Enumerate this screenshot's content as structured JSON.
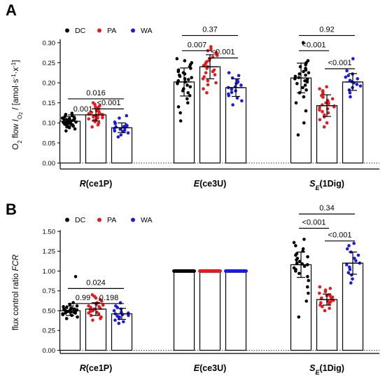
{
  "panels": [
    {
      "letter": "A",
      "legend": [
        {
          "label": "DC",
          "color": "#000000"
        },
        {
          "label": "PA",
          "color": "#e8191d"
        },
        {
          "label": "WA",
          "color": "#1a1ae6"
        }
      ],
      "ylabel_parts": [
        "O",
        "2",
        " flow ",
        "I",
        "O",
        "2",
        " / [amol·s",
        "-1",
        "·x",
        "-1",
        "]"
      ],
      "yticks": [
        "0.00",
        "0.05",
        "0.10",
        "0.15",
        "0.20",
        "0.25",
        "0.30"
      ],
      "chart_data": {
        "type": "bar",
        "ylim": [
          -0.015,
          0.305
        ],
        "yticks": [
          0,
          0.05,
          0.1,
          0.15,
          0.2,
          0.25,
          0.3
        ],
        "reference_line": 0,
        "categories": [
          {
            "name": "R",
            "sub": "",
            "suffix": "(ce1P)"
          },
          {
            "name": "E",
            "sub": "",
            "suffix": "(ce3U)"
          },
          {
            "name": "S",
            "sub": "E",
            "suffix": "(1Dig)"
          }
        ],
        "groups": [
          {
            "category": 0,
            "series": "DC",
            "color": "#000000",
            "mean": 0.104,
            "sd": 0.012,
            "points": [
              0.08,
              0.085,
              0.088,
              0.09,
              0.092,
              0.094,
              0.095,
              0.096,
              0.097,
              0.098,
              0.099,
              0.1,
              0.1,
              0.101,
              0.102,
              0.103,
              0.104,
              0.105,
              0.106,
              0.107,
              0.108,
              0.109,
              0.11,
              0.111,
              0.112,
              0.114,
              0.116,
              0.118,
              0.121,
              0.124
            ]
          },
          {
            "category": 0,
            "series": "PA",
            "color": "#e8191d",
            "mean": 0.12,
            "sd": 0.015,
            "points": [
              0.09,
              0.095,
              0.1,
              0.103,
              0.106,
              0.108,
              0.11,
              0.112,
              0.113,
              0.115,
              0.116,
              0.117,
              0.118,
              0.119,
              0.12,
              0.121,
              0.122,
              0.123,
              0.125,
              0.126,
              0.128,
              0.13,
              0.132,
              0.135,
              0.138,
              0.14,
              0.143,
              0.146,
              0.15
            ]
          },
          {
            "category": 0,
            "series": "WA",
            "color": "#1a1ae6",
            "mean": 0.088,
            "sd": 0.012,
            "points": [
              0.065,
              0.07,
              0.075,
              0.078,
              0.08,
              0.082,
              0.084,
              0.086,
              0.088,
              0.09,
              0.091,
              0.093,
              0.095,
              0.098,
              0.102,
              0.112,
              0.118
            ]
          },
          {
            "category": 1,
            "series": "DC",
            "color": "#000000",
            "mean": 0.202,
            "sd": 0.035,
            "points": [
              0.105,
              0.125,
              0.14,
              0.15,
              0.16,
              0.168,
              0.175,
              0.18,
              0.185,
              0.19,
              0.194,
              0.198,
              0.2,
              0.202,
              0.205,
              0.208,
              0.21,
              0.213,
              0.216,
              0.219,
              0.222,
              0.225,
              0.228,
              0.232,
              0.236,
              0.24,
              0.245,
              0.25,
              0.255,
              0.26
            ]
          },
          {
            "category": 1,
            "series": "PA",
            "color": "#e8191d",
            "mean": 0.24,
            "sd": 0.03,
            "points": [
              0.175,
              0.185,
              0.195,
              0.2,
              0.205,
              0.21,
              0.215,
              0.22,
              0.225,
              0.228,
              0.232,
              0.236,
              0.24,
              0.243,
              0.246,
              0.25,
              0.253,
              0.256,
              0.26,
              0.264,
              0.268,
              0.272,
              0.276,
              0.28,
              0.285,
              0.29
            ]
          },
          {
            "category": 1,
            "series": "WA",
            "color": "#1a1ae6",
            "mean": 0.188,
            "sd": 0.022,
            "points": [
              0.145,
              0.155,
              0.162,
              0.168,
              0.172,
              0.176,
              0.18,
              0.184,
              0.188,
              0.19,
              0.194,
              0.198,
              0.202,
              0.206,
              0.212,
              0.218,
              0.225
            ]
          },
          {
            "category": 2,
            "series": "DC",
            "color": "#000000",
            "mean": 0.212,
            "sd": 0.037,
            "points": [
              0.07,
              0.1,
              0.13,
              0.15,
              0.165,
              0.175,
              0.182,
              0.188,
              0.194,
              0.198,
              0.202,
              0.205,
              0.208,
              0.21,
              0.213,
              0.216,
              0.219,
              0.222,
              0.225,
              0.228,
              0.232,
              0.236,
              0.24,
              0.245,
              0.25,
              0.255,
              0.3
            ]
          },
          {
            "category": 2,
            "series": "PA",
            "color": "#e8191d",
            "mean": 0.143,
            "sd": 0.027,
            "points": [
              0.09,
              0.1,
              0.108,
              0.115,
              0.12,
              0.125,
              0.128,
              0.132,
              0.135,
              0.138,
              0.14,
              0.142,
              0.145,
              0.148,
              0.15,
              0.153,
              0.156,
              0.16,
              0.164,
              0.168,
              0.172,
              0.176,
              0.18,
              0.185,
              0.19
            ]
          },
          {
            "category": 2,
            "series": "WA",
            "color": "#1a1ae6",
            "mean": 0.202,
            "sd": 0.021,
            "points": [
              0.165,
              0.175,
              0.182,
              0.188,
              0.192,
              0.196,
              0.2,
              0.203,
              0.206,
              0.21,
              0.214,
              0.218,
              0.222,
              0.23,
              0.26
            ]
          }
        ],
        "significance": [
          {
            "category": 0,
            "from": "DC",
            "to": "WA",
            "label": "0.016",
            "level": 0.16
          },
          {
            "category": 0,
            "from": "DC",
            "to": "PA",
            "label": "0.001",
            "level": 0.12
          },
          {
            "category": 0,
            "from": "PA",
            "to": "WA",
            "label": "<0.001",
            "level": 0.135
          },
          {
            "category": 1,
            "from": "DC",
            "to": "WA",
            "label": "0.37",
            "level": 0.318
          },
          {
            "category": 1,
            "from": "DC",
            "to": "PA",
            "label": "0.007",
            "level": 0.28
          },
          {
            "category": 1,
            "from": "PA",
            "to": "WA",
            "label": "<0.001",
            "level": 0.262
          },
          {
            "category": 2,
            "from": "DC",
            "to": "WA",
            "label": "0.92",
            "level": 0.318
          },
          {
            "category": 2,
            "from": "DC",
            "to": "PA",
            "label": "<0.001",
            "level": 0.28
          },
          {
            "category": 2,
            "from": "PA",
            "to": "WA",
            "label": "<0.001",
            "level": 0.235
          }
        ]
      }
    },
    {
      "letter": "B",
      "legend": [
        {
          "label": "DC",
          "color": "#000000"
        },
        {
          "label": "PA",
          "color": "#e8191d"
        },
        {
          "label": "WA",
          "color": "#1a1ae6"
        }
      ],
      "ylabel_parts": [
        "flux control ratio ",
        "FCR"
      ],
      "yticks": [
        "0.00",
        "0.25",
        "0.50",
        "0.75",
        "1.00",
        "1.25",
        "1.50"
      ],
      "chart_data": {
        "type": "bar",
        "ylim": [
          -0.04,
          1.5
        ],
        "yticks": [
          0,
          0.25,
          0.5,
          0.75,
          1.0,
          1.25,
          1.5
        ],
        "reference_line": 0,
        "categories": [
          {
            "name": "R",
            "sub": "",
            "suffix": "(ce1P)"
          },
          {
            "name": "E",
            "sub": "",
            "suffix": "(ce3U)"
          },
          {
            "name": "S",
            "sub": "E",
            "suffix": "(1Dig)"
          }
        ],
        "groups": [
          {
            "category": 0,
            "series": "DC",
            "color": "#000000",
            "mean": 0.5,
            "sd": 0.06,
            "points": [
              0.4,
              0.42,
              0.44,
              0.45,
              0.46,
              0.47,
              0.47,
              0.48,
              0.48,
              0.49,
              0.49,
              0.5,
              0.5,
              0.5,
              0.51,
              0.51,
              0.52,
              0.52,
              0.53,
              0.54,
              0.55,
              0.56,
              0.58,
              0.6,
              0.93
            ]
          },
          {
            "category": 0,
            "series": "PA",
            "color": "#e8191d",
            "mean": 0.52,
            "sd": 0.08,
            "points": [
              0.38,
              0.4,
              0.42,
              0.44,
              0.46,
              0.47,
              0.48,
              0.49,
              0.5,
              0.51,
              0.52,
              0.53,
              0.54,
              0.55,
              0.56,
              0.57,
              0.58,
              0.6,
              0.62,
              0.64,
              0.66,
              0.68,
              0.7
            ]
          },
          {
            "category": 0,
            "series": "WA",
            "color": "#1a1ae6",
            "mean": 0.46,
            "sd": 0.07,
            "points": [
              0.34,
              0.36,
              0.38,
              0.4,
              0.42,
              0.43,
              0.44,
              0.45,
              0.46,
              0.47,
              0.48,
              0.5,
              0.52,
              0.54,
              0.56,
              0.6
            ]
          },
          {
            "category": 1,
            "series": "DC",
            "color": "#000000",
            "mean": 1.0,
            "sd": 0,
            "points": []
          },
          {
            "category": 1,
            "series": "PA",
            "color": "#e8191d",
            "mean": 1.0,
            "sd": 0,
            "points": []
          },
          {
            "category": 1,
            "series": "WA",
            "color": "#1a1ae6",
            "mean": 1.0,
            "sd": 0,
            "points": []
          },
          {
            "category": 2,
            "series": "DC",
            "color": "#000000",
            "mean": 1.08,
            "sd": 0.16,
            "points": [
              0.42,
              0.62,
              0.72,
              0.8,
              0.88,
              0.93,
              0.97,
              1.0,
              1.02,
              1.04,
              1.06,
              1.08,
              1.09,
              1.1,
              1.12,
              1.14,
              1.16,
              1.18,
              1.2,
              1.22,
              1.25,
              1.28,
              1.32,
              1.36,
              1.4
            ]
          },
          {
            "category": 2,
            "series": "PA",
            "color": "#e8191d",
            "mean": 0.64,
            "sd": 0.07,
            "points": [
              0.5,
              0.53,
              0.55,
              0.57,
              0.59,
              0.6,
              0.61,
              0.62,
              0.63,
              0.64,
              0.65,
              0.66,
              0.67,
              0.68,
              0.69,
              0.7,
              0.72,
              0.74,
              0.76,
              0.78,
              0.8
            ]
          },
          {
            "category": 2,
            "series": "WA",
            "color": "#1a1ae6",
            "mean": 1.1,
            "sd": 0.14,
            "points": [
              0.85,
              0.9,
              0.95,
              0.98,
              1.02,
              1.05,
              1.08,
              1.1,
              1.13,
              1.16,
              1.2,
              1.24,
              1.28,
              1.32,
              1.35
            ]
          }
        ],
        "significance": [
          {
            "category": 0,
            "from": "DC",
            "to": "WA",
            "label": "0.024",
            "level": 0.78
          },
          {
            "category": 0,
            "from": "DC",
            "to": "PA",
            "label": "0.99",
            "level": 0.59
          },
          {
            "category": 0,
            "from": "PA",
            "to": "WA",
            "label": "0.198",
            "level": 0.59
          },
          {
            "category": 2,
            "from": "DC",
            "to": "WA",
            "label": "0.34",
            "level": 1.72
          },
          {
            "category": 2,
            "from": "DC",
            "to": "PA",
            "label": "<0.001",
            "level": 1.54
          },
          {
            "category": 2,
            "from": "PA",
            "to": "WA",
            "label": "<0.001",
            "level": 1.38
          }
        ]
      }
    }
  ]
}
